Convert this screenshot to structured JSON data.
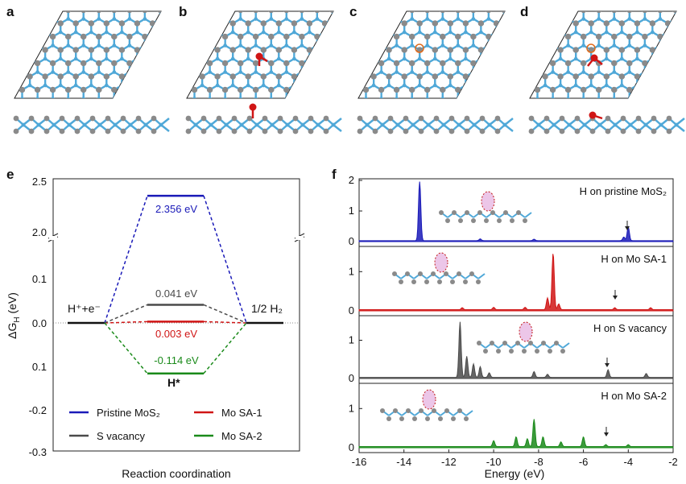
{
  "panels": {
    "a": "a",
    "b": "b",
    "c": "c",
    "d": "d",
    "e": "e",
    "f": "f"
  },
  "colors": {
    "pristine": "#1a1ab8",
    "mosa1": "#d01515",
    "svac": "#4a4a4a",
    "mosa2": "#1a8a1a",
    "mo_atom": "#4fa8d8",
    "s_atom": "#8a8a8a"
  },
  "chart_data": [
    {
      "type": "line",
      "panel": "e",
      "ylabel": "ΔGH (eV)",
      "xlabel": "Reaction coordination",
      "y_ticks_top": [
        "2.5",
        "2.0"
      ],
      "y_ticks_bottom": [
        "0.1",
        "0.0",
        "0.1",
        "-0.2",
        "-0.3"
      ],
      "states": {
        "left": "H⁺+e⁻",
        "middle": "H*",
        "right": "1/2 H₂"
      },
      "series": [
        {
          "name": "Pristine MoS₂",
          "key": "pristine",
          "value": 2.356,
          "label": "2.356 eV"
        },
        {
          "name": "Mo SA-1",
          "key": "mosa1",
          "value": 0.003,
          "label": "0.003 eV"
        },
        {
          "name": "S vacancy",
          "key": "svac",
          "value": 0.041,
          "label": "0.041 eV"
        },
        {
          "name": "Mo SA-2",
          "key": "mosa2",
          "value": -0.114,
          "label": "-0.114 eV"
        }
      ],
      "legend": [
        "Pristine MoS₂",
        "Mo SA-1",
        "S vacancy",
        "Mo SA-2"
      ]
    },
    {
      "type": "area",
      "panel": "f",
      "xlabel": "Energy (eV)",
      "x_ticks": [
        "-16",
        "-14",
        "-12",
        "-10",
        "-8",
        "-6",
        "-4",
        "-2"
      ],
      "xlim": [
        -16,
        -2
      ],
      "subplots": [
        {
          "label": "H on pristine MoS₂",
          "key": "pristine",
          "y_ticks": [
            "2",
            "1",
            "0"
          ],
          "ylim": [
            0,
            2
          ],
          "peaks": [
            [
              -13.3,
              2.0
            ],
            [
              -10.6,
              0.06
            ],
            [
              -8.2,
              0.05
            ],
            [
              -4.2,
              0.12
            ],
            [
              -4.0,
              0.45
            ]
          ]
        },
        {
          "label": "H on Mo SA-1",
          "key": "mosa1",
          "y_ticks": [
            "1",
            "0"
          ],
          "ylim": [
            0,
            1.6
          ],
          "peaks": [
            [
              -11.4,
              0.05
            ],
            [
              -10.0,
              0.06
            ],
            [
              -8.6,
              0.06
            ],
            [
              -7.6,
              0.3
            ],
            [
              -7.35,
              1.45
            ],
            [
              -7.1,
              0.15
            ],
            [
              -4.6,
              0.05
            ],
            [
              -3.0,
              0.05
            ]
          ]
        },
        {
          "label": "H on S vacancy",
          "key": "svac",
          "y_ticks": [
            "1",
            "0"
          ],
          "ylim": [
            0,
            1.6
          ],
          "peaks": [
            [
              -11.5,
              1.45
            ],
            [
              -11.2,
              0.55
            ],
            [
              -10.9,
              0.35
            ],
            [
              -10.6,
              0.28
            ],
            [
              -10.2,
              0.12
            ],
            [
              -8.2,
              0.15
            ],
            [
              -7.6,
              0.08
            ],
            [
              -4.9,
              0.2
            ],
            [
              -3.2,
              0.1
            ]
          ]
        },
        {
          "label": "H on Mo SA-2",
          "key": "mosa2",
          "y_ticks": [
            "1",
            "0"
          ],
          "ylim": [
            0,
            1.6
          ],
          "peaks": [
            [
              -10.0,
              0.15
            ],
            [
              -9.0,
              0.25
            ],
            [
              -8.5,
              0.2
            ],
            [
              -8.2,
              0.7
            ],
            [
              -7.8,
              0.25
            ],
            [
              -7.0,
              0.12
            ],
            [
              -6.0,
              0.25
            ],
            [
              -5.0,
              0.05
            ],
            [
              -4.0,
              0.05
            ]
          ]
        }
      ]
    }
  ]
}
